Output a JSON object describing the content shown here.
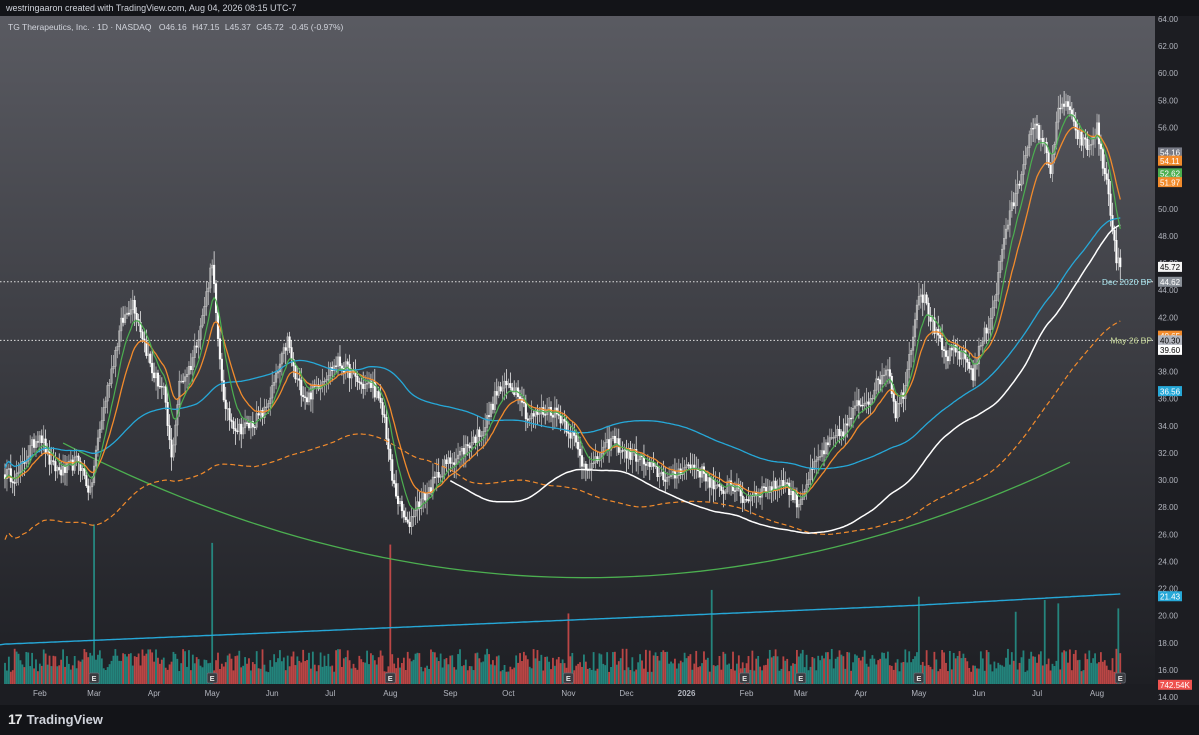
{
  "header": {
    "attribution": "westringaaron created with TradingView.com, Aug 04, 2026 08:15 UTC-7"
  },
  "footer": {
    "brand": "TradingView",
    "logo": "17"
  },
  "chart_data": {
    "type": "candlestick",
    "title": "TG Therapeutics, Inc. · 1D · NASDAQ",
    "ohlc": {
      "o": "O46.16",
      "h": "H47.15",
      "l": "L45.37",
      "c": "C45.72",
      "chg": "-0.45 (-0.97%)"
    },
    "ylim": [
      14,
      64
    ],
    "y_ticks": [
      "64.00",
      "62.00",
      "60.00",
      "58.00",
      "56.00",
      "54.00",
      "52.00",
      "50.00",
      "48.00",
      "46.00",
      "44.00",
      "42.00",
      "40.00",
      "38.00",
      "36.00",
      "34.00",
      "32.00",
      "30.00",
      "28.00",
      "26.00",
      "24.00",
      "22.00",
      "20.00",
      "18.00",
      "16.00",
      "14.00"
    ],
    "x_months": [
      {
        "label": "Feb",
        "day": 18
      },
      {
        "label": "Mar",
        "day": 46
      },
      {
        "label": "Apr",
        "day": 77
      },
      {
        "label": "May",
        "day": 107
      },
      {
        "label": "Jun",
        "day": 138
      },
      {
        "label": "Jul",
        "day": 168
      },
      {
        "label": "Aug",
        "day": 199
      },
      {
        "label": "Sep",
        "day": 230
      },
      {
        "label": "Oct",
        "day": 260
      },
      {
        "label": "Nov",
        "day": 291
      },
      {
        "label": "Dec",
        "day": 321
      },
      {
        "label": "2026",
        "day": 352
      },
      {
        "label": "Feb",
        "day": 383
      },
      {
        "label": "Mar",
        "day": 411
      },
      {
        "label": "Apr",
        "day": 442
      },
      {
        "label": "May",
        "day": 472
      },
      {
        "label": "Jun",
        "day": 503
      },
      {
        "label": "Jul",
        "day": 533
      },
      {
        "label": "Aug",
        "day": 564
      }
    ],
    "day_range": [
      0,
      580
    ],
    "price_anchors": [
      [
        0,
        30.5
      ],
      [
        6,
        30.2
      ],
      [
        12,
        32.0
      ],
      [
        18,
        33.5
      ],
      [
        24,
        31.0
      ],
      [
        30,
        30.6
      ],
      [
        38,
        31.5
      ],
      [
        44,
        29.0
      ],
      [
        48,
        33.0
      ],
      [
        54,
        37.5
      ],
      [
        60,
        41.5
      ],
      [
        66,
        43.2
      ],
      [
        70,
        41.2
      ],
      [
        76,
        38.0
      ],
      [
        82,
        36.5
      ],
      [
        86,
        31.5
      ],
      [
        90,
        37.0
      ],
      [
        96,
        38.5
      ],
      [
        102,
        42.0
      ],
      [
        107,
        46.3
      ],
      [
        110,
        40.0
      ],
      [
        114,
        35.0
      ],
      [
        120,
        33.8
      ],
      [
        126,
        34.0
      ],
      [
        134,
        35.0
      ],
      [
        140,
        37.5
      ],
      [
        146,
        40.3
      ],
      [
        150,
        37.5
      ],
      [
        156,
        36.0
      ],
      [
        160,
        36.8
      ],
      [
        166,
        37.8
      ],
      [
        172,
        38.7
      ],
      [
        178,
        38.0
      ],
      [
        184,
        37.0
      ],
      [
        190,
        37.0
      ],
      [
        196,
        34.5
      ],
      [
        200,
        30.0
      ],
      [
        204,
        28.0
      ],
      [
        208,
        26.5
      ],
      [
        212,
        28.0
      ],
      [
        218,
        29.0
      ],
      [
        226,
        31.0
      ],
      [
        234,
        31.8
      ],
      [
        242,
        33.0
      ],
      [
        248,
        34.0
      ],
      [
        254,
        36.5
      ],
      [
        260,
        37.0
      ],
      [
        266,
        36.5
      ],
      [
        270,
        34.5
      ],
      [
        276,
        35.0
      ],
      [
        282,
        35.2
      ],
      [
        288,
        34.5
      ],
      [
        294,
        33.0
      ],
      [
        298,
        31.3
      ],
      [
        304,
        31.0
      ],
      [
        308,
        32.0
      ],
      [
        314,
        33.0
      ],
      [
        320,
        32.0
      ],
      [
        326,
        31.8
      ],
      [
        332,
        31.0
      ],
      [
        338,
        30.5
      ],
      [
        344,
        30.0
      ],
      [
        350,
        31.0
      ],
      [
        356,
        31.0
      ],
      [
        362,
        30.3
      ],
      [
        366,
        29.5
      ],
      [
        370,
        29.0
      ],
      [
        374,
        30.0
      ],
      [
        378,
        29.2
      ],
      [
        382,
        28.5
      ],
      [
        386,
        29.0
      ],
      [
        392,
        29.3
      ],
      [
        398,
        29.5
      ],
      [
        402,
        30.0
      ],
      [
        406,
        29.0
      ],
      [
        410,
        28.3
      ],
      [
        414,
        29.8
      ],
      [
        418,
        31.0
      ],
      [
        422,
        32.0
      ],
      [
        428,
        33.0
      ],
      [
        434,
        33.8
      ],
      [
        440,
        35.5
      ],
      [
        446,
        36.0
      ],
      [
        452,
        37.5
      ],
      [
        456,
        38.5
      ],
      [
        460,
        35.0
      ],
      [
        464,
        36.5
      ],
      [
        468,
        40.0
      ],
      [
        472,
        44.0
      ],
      [
        476,
        43.0
      ],
      [
        480,
        41.0
      ],
      [
        486,
        39.0
      ],
      [
        490,
        39.5
      ],
      [
        496,
        39.0
      ],
      [
        500,
        37.8
      ],
      [
        504,
        40.0
      ],
      [
        508,
        41.5
      ],
      [
        512,
        44.0
      ],
      [
        516,
        48.0
      ],
      [
        520,
        50.0
      ],
      [
        524,
        52.0
      ],
      [
        528,
        55.0
      ],
      [
        532,
        56.0
      ],
      [
        536,
        55.0
      ],
      [
        540,
        53.0
      ],
      [
        544,
        57.0
      ],
      [
        548,
        58.0
      ],
      [
        552,
        56.0
      ],
      [
        556,
        55.0
      ],
      [
        560,
        54.5
      ],
      [
        564,
        56.0
      ],
      [
        566,
        54.0
      ],
      [
        568,
        52.5
      ],
      [
        570,
        51.5
      ],
      [
        572,
        48.0
      ],
      [
        574,
        46.5
      ],
      [
        576,
        45.72
      ]
    ],
    "earnings_days": [
      46,
      107,
      199,
      291,
      382,
      411,
      472,
      576
    ],
    "volume_peaks": [
      [
        46,
        0.95
      ],
      [
        107,
        0.84
      ],
      [
        199,
        0.83
      ],
      [
        291,
        0.42
      ],
      [
        365,
        0.56
      ],
      [
        472,
        0.52
      ],
      [
        522,
        0.43
      ],
      [
        537,
        0.5
      ],
      [
        544,
        0.48
      ],
      [
        575,
        0.45
      ]
    ],
    "arc_x": [
      30,
      550
    ],
    "horizontal_levels": [
      {
        "label": "Dec 2020 BP",
        "value": 44.62,
        "color": "#a3e0ea"
      },
      {
        "label": "May 26 BP",
        "value": 40.3,
        "color": "#c8d99a"
      }
    ],
    "price_tags": [
      {
        "value": "54.16",
        "color": "#787b86",
        "y": 54.16
      },
      {
        "value": "54.11",
        "color": "#f28b2c",
        "y": 53.55
      },
      {
        "value": "52.62",
        "color": "#4caf50",
        "y": 52.62
      },
      {
        "value": "51.97",
        "color": "#f28b2c",
        "y": 51.97
      },
      {
        "value": "45.72",
        "color": "#f5f5f5",
        "text": "#000000",
        "y": 45.72
      },
      {
        "value": "44.62",
        "color": "#8a9098",
        "y": 44.62
      },
      {
        "value": "40.65",
        "color": "#f28b2c",
        "y": 40.65
      },
      {
        "value": "40.30",
        "color": "#b2b5be",
        "text": "#000000",
        "y": 40.3
      },
      {
        "value": "39.60",
        "color": "#ffffff",
        "text": "#000000",
        "y": 39.6
      },
      {
        "value": "36.56",
        "color": "#26a8d8",
        "y": 36.56
      },
      {
        "value": "21.43",
        "color": "#26a8d8",
        "y": 21.43
      },
      {
        "value": "742.54K",
        "color": "#ef5350",
        "y": 14.9
      }
    ],
    "colors": {
      "up": "#c9c9c9",
      "down": "#ffffff",
      "ma_green": "#4caf50",
      "ma_orange": "#f28b2c",
      "ma_cyan": "#26a8d8",
      "ma_white": "#ffffff",
      "arc": "#4caf50",
      "vol_up": "#26a69a",
      "vol_down": "#ef5350"
    }
  }
}
